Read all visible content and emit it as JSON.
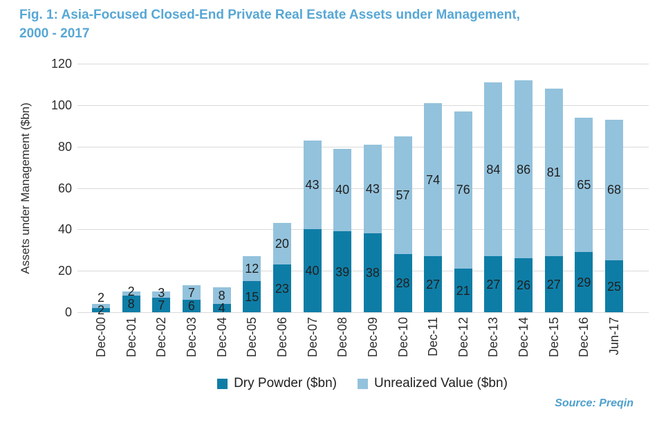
{
  "title": {
    "line1": "Fig. 1: Asia-Focused Closed-End Private Real Estate Assets under Management,",
    "line2": "2000 - 2017"
  },
  "source_label": "Source: Preqin",
  "colors": {
    "title_blue": "#57a7d5",
    "source_blue": "#4d9fcc",
    "dry_powder": "#0e7da6",
    "unrealized": "#93c2dc",
    "gridline": "#d9d9d9",
    "text": "#2e2e2e"
  },
  "chart_data": {
    "type": "bar",
    "stacked": true,
    "grid": true,
    "legend_position": "bottom",
    "ylabel": "Assets under Management ($bn)",
    "ylim": [
      0,
      120
    ],
    "yticks": [
      0,
      20,
      40,
      60,
      80,
      100,
      120
    ],
    "categories": [
      "Dec-00",
      "Dec-01",
      "Dec-02",
      "Dec-03",
      "Dec-04",
      "Dec-05",
      "Dec-06",
      "Dec-07",
      "Dec-08",
      "Dec-09",
      "Dec-10",
      "Dec-11",
      "Dec-12",
      "Dec-13",
      "Dec-14",
      "Dec-15",
      "Dec-16",
      "Jun-17"
    ],
    "series": [
      {
        "name": "Dry Powder ($bn)",
        "color_key": "dry_powder",
        "values": [
          2,
          8,
          7,
          6,
          4,
          15,
          23,
          40,
          39,
          38,
          28,
          27,
          21,
          27,
          26,
          27,
          29,
          25
        ]
      },
      {
        "name": "Unrealized Value ($bn)",
        "color_key": "unrealized",
        "values": [
          2,
          2,
          3,
          7,
          8,
          12,
          20,
          43,
          40,
          43,
          57,
          74,
          76,
          84,
          86,
          81,
          65,
          68
        ]
      }
    ]
  }
}
